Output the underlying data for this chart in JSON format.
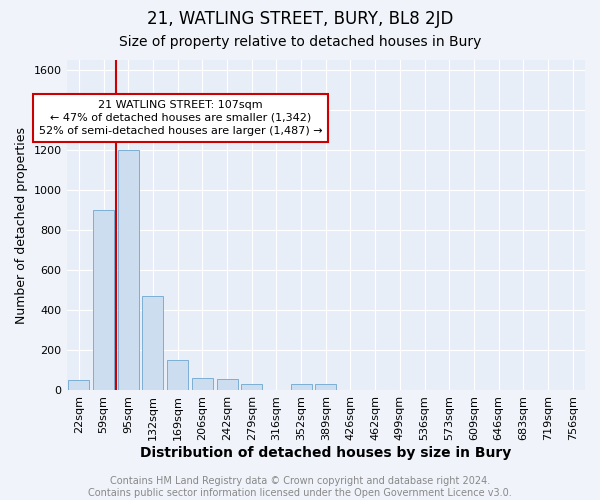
{
  "title": "21, WATLING STREET, BURY, BL8 2JD",
  "subtitle": "Size of property relative to detached houses in Bury",
  "xlabel": "Distribution of detached houses by size in Bury",
  "ylabel": "Number of detached properties",
  "categories": [
    "22sqm",
    "59sqm",
    "95sqm",
    "132sqm",
    "169sqm",
    "206sqm",
    "242sqm",
    "279sqm",
    "316sqm",
    "352sqm",
    "389sqm",
    "426sqm",
    "462sqm",
    "499sqm",
    "536sqm",
    "573sqm",
    "609sqm",
    "646sqm",
    "683sqm",
    "719sqm",
    "756sqm"
  ],
  "values": [
    50,
    900,
    1200,
    470,
    150,
    60,
    55,
    30,
    0,
    30,
    30,
    0,
    0,
    0,
    0,
    0,
    0,
    0,
    0,
    0,
    0
  ],
  "bar_color": "#ccddf0",
  "bar_edge_color": "#7bafd4",
  "vline_x_idx": 2,
  "vline_color": "#cc0000",
  "annotation_text": "21 WATLING STREET: 107sqm\n← 47% of detached houses are smaller (1,342)\n52% of semi-detached houses are larger (1,487) →",
  "annotation_box_edge": "#cc0000",
  "ylim": [
    0,
    1650
  ],
  "yticks": [
    0,
    200,
    400,
    600,
    800,
    1000,
    1200,
    1400,
    1600
  ],
  "background_color": "#f0f4fa",
  "plot_bg_color": "#e8eef8",
  "footer_text": "Contains HM Land Registry data © Crown copyright and database right 2024.\nContains public sector information licensed under the Open Government Licence v3.0.",
  "title_fontsize": 12,
  "subtitle_fontsize": 10,
  "xlabel_fontsize": 10,
  "ylabel_fontsize": 9,
  "tick_fontsize": 8,
  "footer_fontsize": 7,
  "grid_color": "#ffffff",
  "annotation_fontsize": 8
}
